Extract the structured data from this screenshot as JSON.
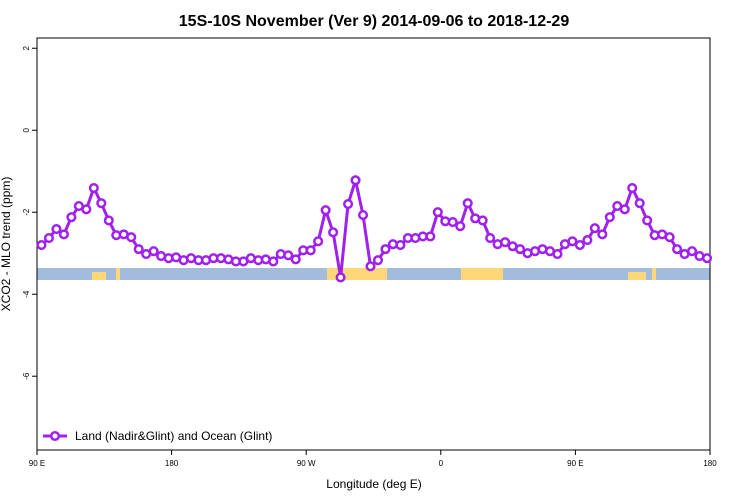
{
  "chart_data": {
    "type": "line",
    "title": "15S-10S November (Ver 9)   2014-09-06 to 2018-12-29",
    "x_label": "Longitude (deg E)",
    "y_label": "XCO2 - MLO trend (ppm)",
    "xlim": [
      90,
      540
    ],
    "ylim": [
      -7.8,
      2.25
    ],
    "xticks": [
      {
        "value": 90,
        "label": "90 E"
      },
      180,
      {
        "value": 270,
        "label": "90 W"
      },
      {
        "value": 360,
        "label": "0"
      },
      {
        "value": 450,
        "label": "90 E"
      },
      {
        "value": 540,
        "label": "180"
      }
    ],
    "yticks": [
      2,
      0,
      -2,
      -4,
      -6
    ],
    "legend": "bottom-left",
    "x": [
      93,
      98,
      103,
      108,
      113,
      118,
      123,
      128,
      133,
      138,
      143,
      148,
      153,
      158,
      163,
      168,
      173,
      178,
      183,
      188,
      193,
      198,
      203,
      208,
      213,
      218,
      223,
      228,
      233,
      238,
      243,
      248,
      253,
      258,
      263,
      268,
      273,
      278,
      283,
      288,
      293,
      298,
      303,
      308,
      313,
      318,
      323,
      328,
      333,
      338,
      343,
      348,
      353,
      358,
      363,
      368,
      373,
      378,
      383,
      388,
      393,
      398,
      403,
      408,
      413,
      418,
      423,
      428,
      433,
      438,
      443,
      448,
      453,
      458,
      463,
      468,
      473,
      478,
      483,
      488,
      493,
      498,
      503,
      508,
      513,
      518,
      523,
      528,
      533,
      538
    ],
    "series": [
      {
        "name": "Land (Nadir&Glint) and Ocean (Glint)",
        "color": "#a020f0",
        "values": [
          -2.8,
          -2.63,
          -2.41,
          -2.54,
          -2.12,
          -1.85,
          -1.93,
          -1.41,
          -1.78,
          -2.2,
          -2.56,
          -2.54,
          -2.61,
          -2.9,
          -3.02,
          -2.95,
          -3.07,
          -3.12,
          -3.1,
          -3.17,
          -3.12,
          -3.17,
          -3.17,
          -3.12,
          -3.12,
          -3.15,
          -3.2,
          -3.2,
          -3.12,
          -3.17,
          -3.15,
          -3.2,
          -3.02,
          -3.05,
          -3.15,
          -2.93,
          -2.93,
          -2.71,
          -1.95,
          -2.49,
          -3.59,
          -1.8,
          -1.22,
          -2.07,
          -3.32,
          -3.17,
          -2.9,
          -2.78,
          -2.8,
          -2.63,
          -2.63,
          -2.59,
          -2.59,
          -2.0,
          -2.22,
          -2.24,
          -2.34,
          -1.78,
          -2.15,
          -2.2,
          -2.63,
          -2.78,
          -2.73,
          -2.83,
          -2.9,
          -3.0,
          -2.95,
          -2.9,
          -2.95,
          -3.02,
          -2.78,
          -2.71,
          -2.8,
          -2.68,
          -2.39,
          -2.54,
          -2.12,
          -1.85,
          -1.93,
          -1.41,
          -1.78,
          -2.2,
          -2.56,
          -2.54,
          -2.61,
          -2.9,
          -3.02,
          -2.95,
          -3.07,
          -3.12
        ]
      }
    ]
  }
}
